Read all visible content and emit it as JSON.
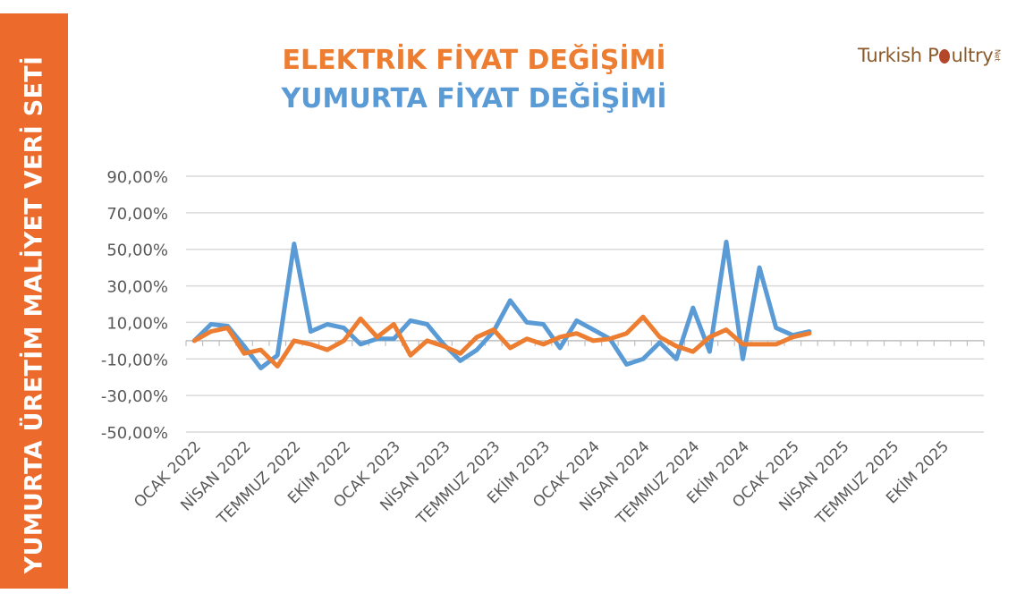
{
  "side_label": "YUMURTA ÜRETİM MALİYET VERİ SETİ",
  "brand": {
    "part1": "Turkish P",
    "part2": "ultry",
    "suffix": "Net"
  },
  "colors": {
    "electric": "#ed7d31",
    "egg": "#5b9bd5",
    "band": "#ec6a2b",
    "grid": "#d9d9d9",
    "axis_text": "#595959"
  },
  "chart_data": {
    "type": "line",
    "title_lines": [
      "ELEKTRİK FİYAT DEĞİŞİMİ",
      "YUMURTA FİYAT DEĞİŞİMİ"
    ],
    "yticks": [
      "90,00%",
      "70,00%",
      "50,00%",
      "30,00%",
      "10,00%",
      "-10,00%",
      "-30,00%",
      "-50,00%"
    ],
    "ylim": [
      -50,
      90
    ],
    "grid": true,
    "x_labels": [
      "OCAK 2022",
      "NİSAN 2022",
      "TEMMUZ 2022",
      "EKİM 2022",
      "OCAK 2023",
      "NİSAN 2023",
      "TEMMUZ 2023",
      "EKİM 2023",
      "OCAK 2024",
      "NİSAN 2024",
      "TEMMUZ 2024",
      "EKİM 2024",
      "OCAK 2025",
      "NİSAN 2025",
      "TEMMUZ 2025",
      "EKİM 2025"
    ],
    "months_total": 48,
    "series": [
      {
        "key": "egg",
        "values": [
          0,
          9,
          8,
          -3,
          -15,
          -8,
          53,
          5,
          9,
          7,
          -2,
          1,
          1,
          11,
          9,
          -2,
          -11,
          -5,
          5,
          22,
          10,
          9,
          -4,
          11,
          6,
          1,
          -13,
          -10,
          -1,
          -10,
          18,
          -6,
          54,
          -10,
          40,
          7,
          3,
          5
        ]
      },
      {
        "key": "electric",
        "values": [
          0,
          5,
          7,
          -7,
          -5,
          -14,
          0,
          -2,
          -5,
          0,
          12,
          2,
          9,
          -8,
          0,
          -3,
          -7,
          2,
          6,
          -4,
          1,
          -2,
          2,
          4,
          0,
          1,
          4,
          13,
          2,
          -3,
          -6,
          2,
          6,
          -2,
          -2,
          -2,
          2,
          4
        ]
      }
    ]
  }
}
